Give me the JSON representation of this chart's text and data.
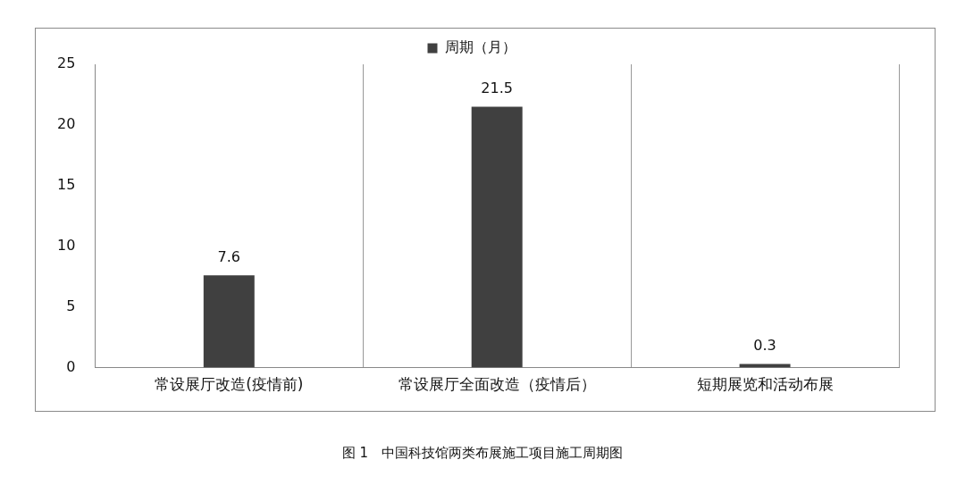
{
  "chart_data": {
    "type": "bar",
    "categories": [
      "常设展厅改造(疫情前)",
      "常设展厅全面改造（疫情后）",
      "短期展览和活动布展"
    ],
    "series": [
      {
        "name": "周期（月）",
        "color": "#404040",
        "values": [
          7.6,
          21.5,
          0.3
        ]
      }
    ],
    "ylim": [
      0,
      25
    ],
    "yticks": [
      0,
      5,
      10,
      15,
      20,
      25
    ],
    "grid": "x",
    "legend": "top",
    "data_labels": true,
    "annotations": [
      "图 1　中国科技馆两类布展施工项目施工周期图"
    ]
  }
}
